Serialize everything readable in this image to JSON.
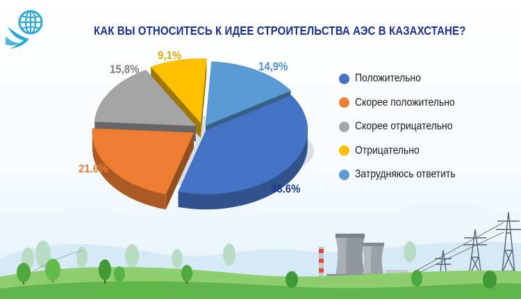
{
  "title": "КАК ВЫ ОТНОСИТЕСЬ К ИДЕЕ СТРОИТЕЛЬСТВА АЭС В КАЗАХСТАНЕ?",
  "chart_data": {
    "type": "pie",
    "title": "КАК ВЫ ОТНОСИТЕСЬ К ИДЕЕ СТРОИТЕЛЬСТВА АЭС В КАЗАХСТАНЕ?",
    "legend_position": "right",
    "categories": [
      "Положительно",
      "Скорее положительно",
      "Скорее отрицательно",
      "Отрицательно",
      "Затрудняюсь ответить"
    ],
    "values": [
      38.6,
      21.6,
      15.8,
      9.1,
      14.9
    ],
    "value_labels": [
      "38.6%",
      "21.6%",
      "15,8%",
      "9,1%",
      "14,9%"
    ],
    "colors": [
      "#4472c4",
      "#ed7d31",
      "#a5a5a5",
      "#ffc000",
      "#5b9bd5"
    ],
    "label_colors": [
      "#1f3a8a",
      "#ed7d31",
      "#7f7f7f",
      "#e6a800",
      "#4a90d0"
    ]
  },
  "logo": {
    "icon": "globe-bird-icon",
    "color": "#2aa9d8"
  }
}
